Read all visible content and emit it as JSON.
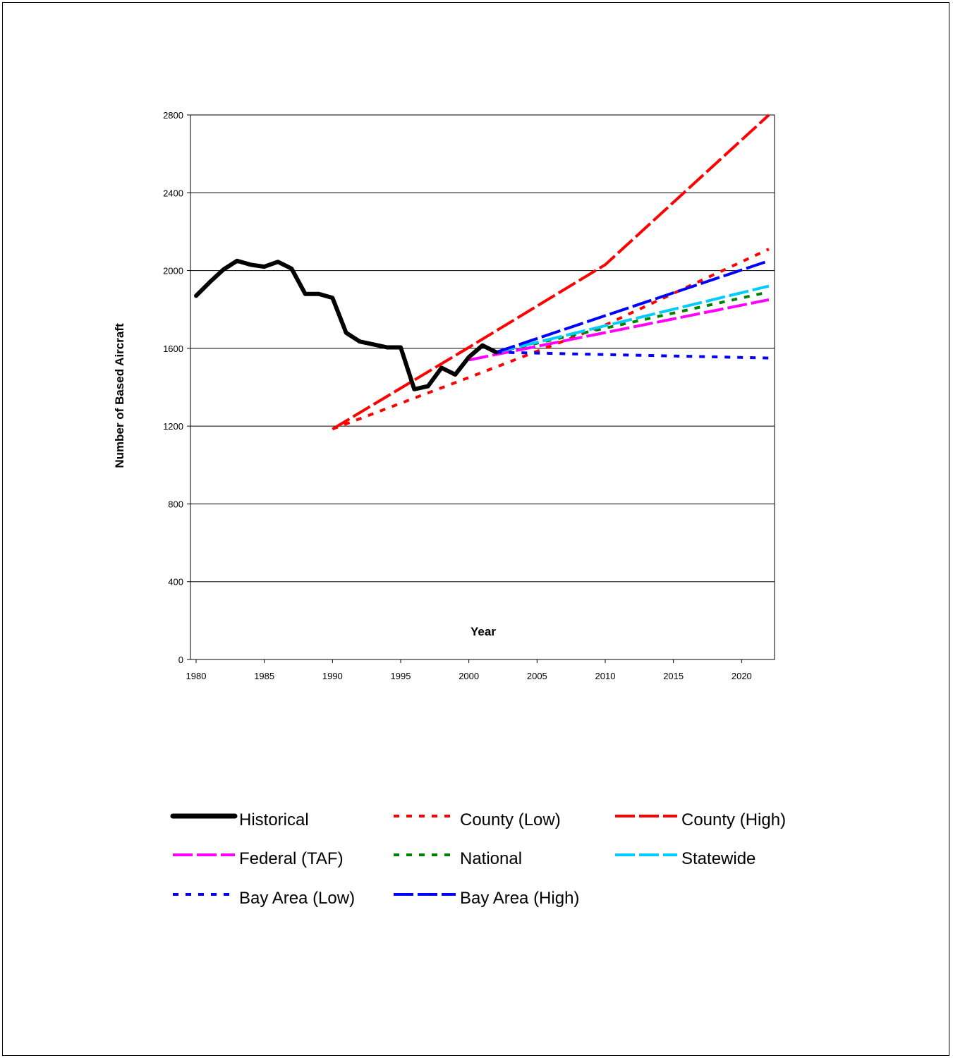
{
  "chart_data": {
    "type": "line",
    "xlabel": "Year",
    "ylabel": "Number of Based Aircraft",
    "xlim": [
      1980,
      2022
    ],
    "ylim": [
      0,
      2800
    ],
    "x_ticks": [
      1980,
      1985,
      1990,
      1995,
      2000,
      2005,
      2010,
      2015,
      2020
    ],
    "y_ticks": [
      0,
      400,
      800,
      1200,
      1600,
      2000,
      2400,
      2800
    ],
    "grid": "horizontal",
    "legend_position": "bottom",
    "series": [
      {
        "name": "Historical",
        "color": "#000000",
        "style": "solid-thick",
        "points": [
          [
            1980,
            1870
          ],
          [
            1981,
            1940
          ],
          [
            1982,
            2005
          ],
          [
            1983,
            2050
          ],
          [
            1984,
            2030
          ],
          [
            1985,
            2020
          ],
          [
            1986,
            2045
          ],
          [
            1987,
            2010
          ],
          [
            1988,
            1880
          ],
          [
            1989,
            1880
          ],
          [
            1990,
            1860
          ],
          [
            1991,
            1680
          ],
          [
            1992,
            1635
          ],
          [
            1993,
            1620
          ],
          [
            1994,
            1605
          ],
          [
            1995,
            1605
          ],
          [
            1996,
            1390
          ],
          [
            1997,
            1405
          ],
          [
            1998,
            1500
          ],
          [
            1999,
            1465
          ],
          [
            2000,
            1555
          ],
          [
            2001,
            1615
          ],
          [
            2002,
            1580
          ]
        ]
      },
      {
        "name": "County (Low)",
        "color": "#ff0000",
        "style": "dotted",
        "points": [
          [
            1990,
            1185
          ],
          [
            2000,
            1450
          ],
          [
            2010,
            1720
          ],
          [
            2022,
            2110
          ]
        ]
      },
      {
        "name": "County (High)",
        "color": "#ff0000",
        "style": "dashed",
        "points": [
          [
            1990,
            1185
          ],
          [
            2000,
            1605
          ],
          [
            2010,
            2030
          ],
          [
            2022,
            2800
          ]
        ]
      },
      {
        "name": "Federal (TAF)",
        "color": "#ff00ff",
        "style": "dashed",
        "points": [
          [
            2000,
            1540
          ],
          [
            2022,
            1850
          ]
        ]
      },
      {
        "name": "National",
        "color": "#008000",
        "style": "dotted",
        "points": [
          [
            2002,
            1580
          ],
          [
            2022,
            1890
          ]
        ]
      },
      {
        "name": "Statewide",
        "color": "#00ccff",
        "style": "dashed",
        "points": [
          [
            2002,
            1580
          ],
          [
            2022,
            1920
          ]
        ]
      },
      {
        "name": "Bay Area (Low)",
        "color": "#0000ff",
        "style": "dotted",
        "points": [
          [
            2002,
            1580
          ],
          [
            2022,
            1550
          ]
        ]
      },
      {
        "name": "Bay Area (High)",
        "color": "#0000ff",
        "style": "dashed",
        "points": [
          [
            2002,
            1580
          ],
          [
            2022,
            2050
          ]
        ]
      }
    ]
  }
}
